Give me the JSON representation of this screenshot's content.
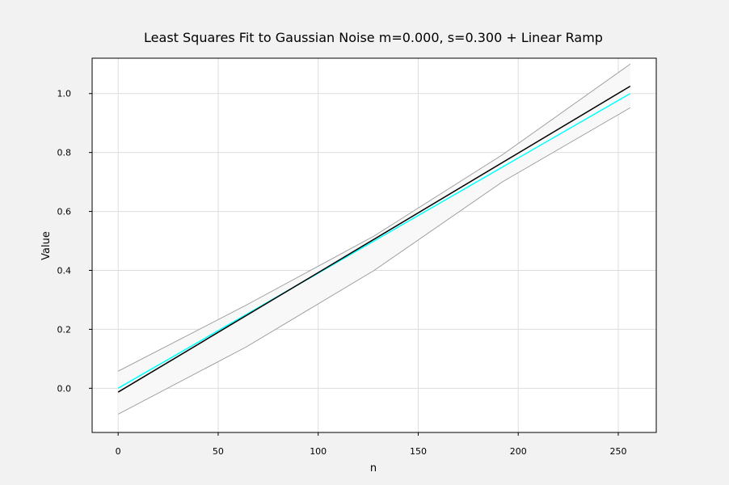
{
  "chart_data": {
    "type": "line",
    "title": "Least Squares Fit to Gaussian Noise m=0.000, s=0.300 + Linear Ramp",
    "xlabel": "n",
    "ylabel": "Value",
    "xlim": [
      -13,
      269
    ],
    "ylim": [
      -0.15,
      1.12
    ],
    "xticks": [
      0,
      50,
      100,
      150,
      200,
      250
    ],
    "yticks": [
      0.0,
      0.2,
      0.4,
      0.6,
      0.8,
      1.0
    ],
    "xtick_labels": [
      "0",
      "50",
      "100",
      "150",
      "200",
      "250"
    ],
    "ytick_labels": [
      "0.0",
      "0.2",
      "0.4",
      "0.6",
      "0.8",
      "1.0"
    ],
    "grid": true,
    "legend": "none",
    "series": [
      {
        "role": "confidence-upper",
        "color": "#999999",
        "x": [
          0,
          64,
          128,
          192,
          256
        ],
        "y": [
          0.058,
          0.282,
          0.517,
          0.792,
          1.1
        ]
      },
      {
        "role": "confidence-lower",
        "color": "#999999",
        "x": [
          0,
          64,
          128,
          192,
          256
        ],
        "y": [
          -0.088,
          0.14,
          0.4,
          0.7,
          0.952
        ]
      },
      {
        "role": "true-ramp",
        "color": "#00ffff",
        "x": [
          0,
          256
        ],
        "y": [
          0.0,
          1.0
        ]
      },
      {
        "role": "least-squares-fit",
        "color": "#000000",
        "x": [
          0,
          256
        ],
        "y": [
          -0.013,
          1.025
        ]
      }
    ],
    "band_fill": "#f8f8f8"
  }
}
